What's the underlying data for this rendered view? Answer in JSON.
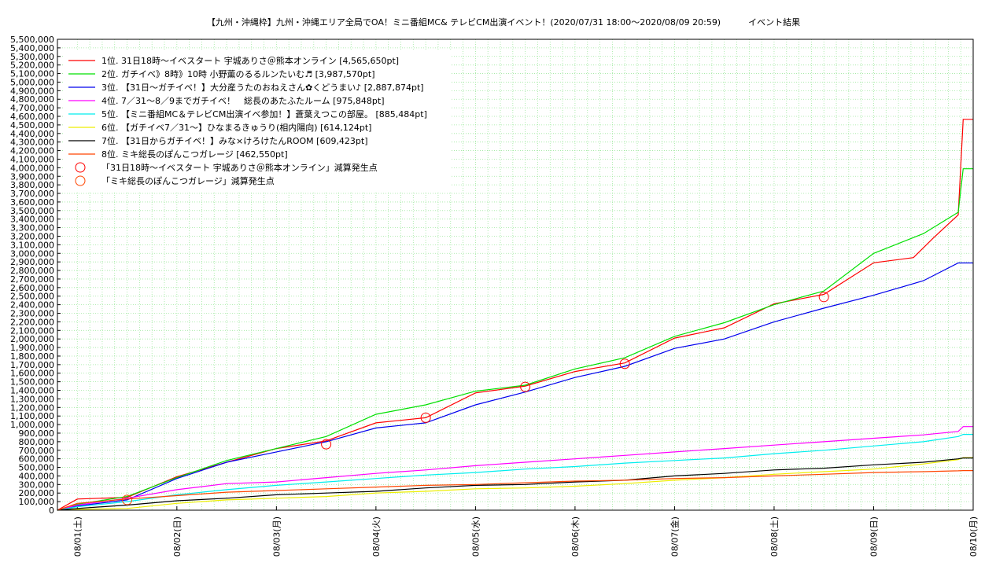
{
  "chart_data": {
    "type": "line",
    "title": "【九州・沖縄枠】九州・沖縄エリア全局でOA！ミニ番組MC& テレビCM出演イベント！(2020/07/31 18:00～2020/08/09 20:59)          イベント結果",
    "xlabel": "",
    "ylabel": "",
    "ylim": [
      0,
      5500000
    ],
    "y_tick_step": 100000,
    "x_tick_labels": [
      "08/01(土)",
      "08/02(日)",
      "08/03(月)",
      "08/04(火)",
      "08/05(水)",
      "08/06(木)",
      "08/07(金)",
      "08/08(土)",
      "08/09(日)",
      "08/10(月)"
    ],
    "x_range_days": [
      -0.2,
      9.0
    ],
    "grid": true,
    "legend_position": "top-left",
    "series": [
      {
        "name": "1位. 31日18時〜イベスタート 宇城ありさ＠熊本オンライン [4,565,650pt]",
        "color": "#ff0000",
        "points": [
          [
            -0.2,
            0
          ],
          [
            0,
            130000
          ],
          [
            0.5,
            150000
          ],
          [
            1,
            390000
          ],
          [
            1.5,
            560000
          ],
          [
            2,
            720000
          ],
          [
            2.5,
            810000
          ],
          [
            3,
            1020000
          ],
          [
            3.5,
            1080000
          ],
          [
            4,
            1370000
          ],
          [
            4.5,
            1450000
          ],
          [
            5,
            1620000
          ],
          [
            5.5,
            1720000
          ],
          [
            6,
            2010000
          ],
          [
            6.5,
            2130000
          ],
          [
            7,
            2410000
          ],
          [
            7.5,
            2520000
          ],
          [
            8,
            2890000
          ],
          [
            8.4,
            2950000
          ],
          [
            8.6,
            3180000
          ],
          [
            8.85,
            3450000
          ],
          [
            8.9,
            4565650
          ],
          [
            9.0,
            4565650
          ]
        ]
      },
      {
        "name": "2位. ガチイベ》8時》10時 小野薫のるるルンたいむ♬ [3,987,570pt]",
        "color": "#00e000",
        "points": [
          [
            -0.2,
            0
          ],
          [
            0,
            70000
          ],
          [
            0.5,
            160000
          ],
          [
            1,
            380000
          ],
          [
            1.5,
            580000
          ],
          [
            2,
            720000
          ],
          [
            2.5,
            860000
          ],
          [
            3,
            1120000
          ],
          [
            3.5,
            1230000
          ],
          [
            4,
            1390000
          ],
          [
            4.5,
            1460000
          ],
          [
            5,
            1650000
          ],
          [
            5.5,
            1780000
          ],
          [
            6,
            2030000
          ],
          [
            6.5,
            2190000
          ],
          [
            7,
            2400000
          ],
          [
            7.5,
            2560000
          ],
          [
            8,
            3000000
          ],
          [
            8.5,
            3230000
          ],
          [
            8.85,
            3480000
          ],
          [
            8.9,
            3987570
          ],
          [
            9.0,
            3987570
          ]
        ]
      },
      {
        "name": "3位. 【31日〜ガチイベ！】大分産うたのおねえさん✿くどうまい♪ [2,887,874pt]",
        "color": "#0000ee",
        "points": [
          [
            -0.2,
            0
          ],
          [
            0,
            50000
          ],
          [
            0.5,
            120000
          ],
          [
            1,
            370000
          ],
          [
            1.5,
            560000
          ],
          [
            2,
            680000
          ],
          [
            2.5,
            800000
          ],
          [
            3,
            960000
          ],
          [
            3.5,
            1020000
          ],
          [
            4,
            1230000
          ],
          [
            4.5,
            1380000
          ],
          [
            5,
            1550000
          ],
          [
            5.5,
            1680000
          ],
          [
            6,
            1890000
          ],
          [
            6.5,
            2000000
          ],
          [
            7,
            2200000
          ],
          [
            7.5,
            2360000
          ],
          [
            8,
            2510000
          ],
          [
            8.5,
            2680000
          ],
          [
            8.85,
            2887874
          ],
          [
            9.0,
            2887874
          ]
        ]
      },
      {
        "name": "4位. 7／31〜8／9までガチイベ！　総長のあたふたルーム [975,848pt]",
        "color": "#ff00ff",
        "points": [
          [
            -0.2,
            0
          ],
          [
            0,
            60000
          ],
          [
            0.5,
            140000
          ],
          [
            1,
            240000
          ],
          [
            1.5,
            310000
          ],
          [
            2,
            330000
          ],
          [
            2.5,
            380000
          ],
          [
            3,
            430000
          ],
          [
            3.5,
            470000
          ],
          [
            4,
            520000
          ],
          [
            4.5,
            560000
          ],
          [
            5,
            600000
          ],
          [
            5.5,
            640000
          ],
          [
            6,
            680000
          ],
          [
            6.5,
            720000
          ],
          [
            7,
            760000
          ],
          [
            7.5,
            800000
          ],
          [
            8,
            840000
          ],
          [
            8.5,
            880000
          ],
          [
            8.85,
            920000
          ],
          [
            8.9,
            975848
          ],
          [
            9.0,
            975848
          ]
        ]
      },
      {
        "name": "5位. 【ミニ番組MC＆テレビCM出演イベ参加！】蒼葉えつこの部屋。 [885,484pt]",
        "color": "#00eeee",
        "points": [
          [
            -0.2,
            0
          ],
          [
            0,
            40000
          ],
          [
            0.5,
            100000
          ],
          [
            1,
            180000
          ],
          [
            1.5,
            240000
          ],
          [
            2,
            290000
          ],
          [
            2.5,
            330000
          ],
          [
            3,
            370000
          ],
          [
            3.5,
            410000
          ],
          [
            4,
            440000
          ],
          [
            4.5,
            480000
          ],
          [
            5,
            510000
          ],
          [
            5.5,
            550000
          ],
          [
            6,
            580000
          ],
          [
            6.5,
            610000
          ],
          [
            7,
            660000
          ],
          [
            7.5,
            700000
          ],
          [
            8,
            750000
          ],
          [
            8.5,
            800000
          ],
          [
            8.85,
            860000
          ],
          [
            8.9,
            885484
          ],
          [
            9.0,
            885484
          ]
        ]
      },
      {
        "name": "6位. 【ガチイベ7／31〜】ひなまるきゅうり(相内陽向) [614,124pt]",
        "color": "#eeee00",
        "points": [
          [
            -0.2,
            0
          ],
          [
            0,
            10000
          ],
          [
            0.5,
            20000
          ],
          [
            1,
            80000
          ],
          [
            1.5,
            120000
          ],
          [
            2,
            140000
          ],
          [
            2.5,
            160000
          ],
          [
            3,
            200000
          ],
          [
            3.5,
            220000
          ],
          [
            4,
            250000
          ],
          [
            4.5,
            260000
          ],
          [
            5,
            280000
          ],
          [
            5.5,
            310000
          ],
          [
            6,
            350000
          ],
          [
            6.5,
            380000
          ],
          [
            7,
            420000
          ],
          [
            7.5,
            450000
          ],
          [
            8,
            480000
          ],
          [
            8.5,
            540000
          ],
          [
            8.85,
            590000
          ],
          [
            8.9,
            614124
          ],
          [
            9.0,
            614124
          ]
        ]
      },
      {
        "name": "7位. 【31日からガチイベ！】みな×けろけたんROOM [609,423pt]",
        "color": "#000000",
        "points": [
          [
            -0.2,
            0
          ],
          [
            0,
            20000
          ],
          [
            0.5,
            60000
          ],
          [
            1,
            110000
          ],
          [
            1.5,
            140000
          ],
          [
            2,
            180000
          ],
          [
            2.5,
            200000
          ],
          [
            3,
            220000
          ],
          [
            3.5,
            260000
          ],
          [
            4,
            290000
          ],
          [
            4.5,
            300000
          ],
          [
            5,
            330000
          ],
          [
            5.5,
            350000
          ],
          [
            6,
            400000
          ],
          [
            6.5,
            430000
          ],
          [
            7,
            470000
          ],
          [
            7.5,
            490000
          ],
          [
            8,
            530000
          ],
          [
            8.5,
            560000
          ],
          [
            8.85,
            600000
          ],
          [
            8.9,
            609423
          ],
          [
            9.0,
            609423
          ]
        ]
      },
      {
        "name": "8位. ミキ総長のぽんこつガレージ [462,550pt]",
        "color": "#ff4500",
        "points": [
          [
            -0.2,
            0
          ],
          [
            0,
            80000
          ],
          [
            0.5,
            130000
          ],
          [
            1,
            170000
          ],
          [
            1.5,
            210000
          ],
          [
            2,
            230000
          ],
          [
            2.5,
            250000
          ],
          [
            3,
            270000
          ],
          [
            3.5,
            290000
          ],
          [
            4,
            300000
          ],
          [
            4.5,
            320000
          ],
          [
            5,
            340000
          ],
          [
            5.5,
            350000
          ],
          [
            6,
            370000
          ],
          [
            6.5,
            380000
          ],
          [
            7,
            400000
          ],
          [
            7.5,
            420000
          ],
          [
            8,
            440000
          ],
          [
            8.5,
            450000
          ],
          [
            8.85,
            460000
          ],
          [
            8.9,
            462550
          ],
          [
            9.0,
            462550
          ]
        ]
      }
    ],
    "reduction_markers": [
      {
        "name": "「31日18時〜イベスタート 宇城ありさ＠熊本オンライン」減算発生点",
        "color": "#ff0000",
        "points": [
          [
            2.5,
            770000
          ],
          [
            3.5,
            1080000
          ],
          [
            4.5,
            1440000
          ],
          [
            5.5,
            1710000
          ],
          [
            7.5,
            2490000
          ]
        ]
      },
      {
        "name": "「ミキ総長のぽんこつガレージ」減算発生点",
        "color": "#ff4500",
        "points": [
          [
            0.5,
            120000
          ]
        ]
      }
    ]
  }
}
